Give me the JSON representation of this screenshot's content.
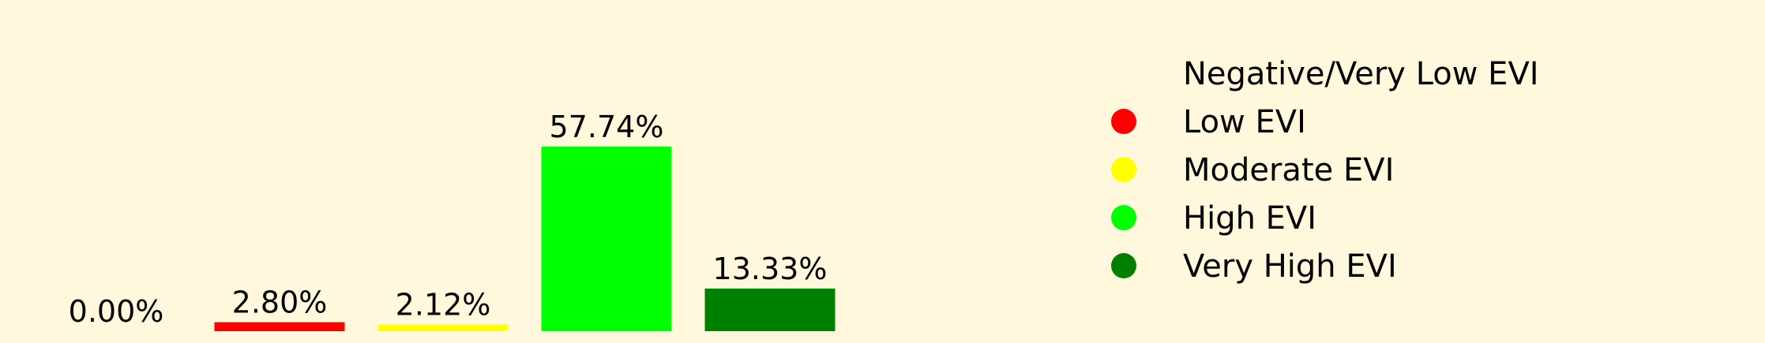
{
  "chart_data": {
    "type": "bar",
    "categories": [
      "Negative/Very Low EVI",
      "Low EVI",
      "Moderate EVI",
      "High EVI",
      "Very High EVI"
    ],
    "values": [
      0.0,
      2.8,
      2.12,
      57.74,
      13.33
    ],
    "data_labels": [
      "0.00%",
      "2.80%",
      "2.12%",
      "57.74%",
      "13.33%"
    ],
    "colors": [
      "#fff8dc",
      "#ff0000",
      "#ffff00",
      "#00ff00",
      "#008000"
    ],
    "legend": {
      "position": "right",
      "entries": [
        "Negative/Very Low EVI",
        "Low EVI",
        "Moderate EVI",
        "High EVI",
        "Very High EVI"
      ]
    },
    "axes_visible": false,
    "grid": false,
    "background": "#fff8dc"
  }
}
